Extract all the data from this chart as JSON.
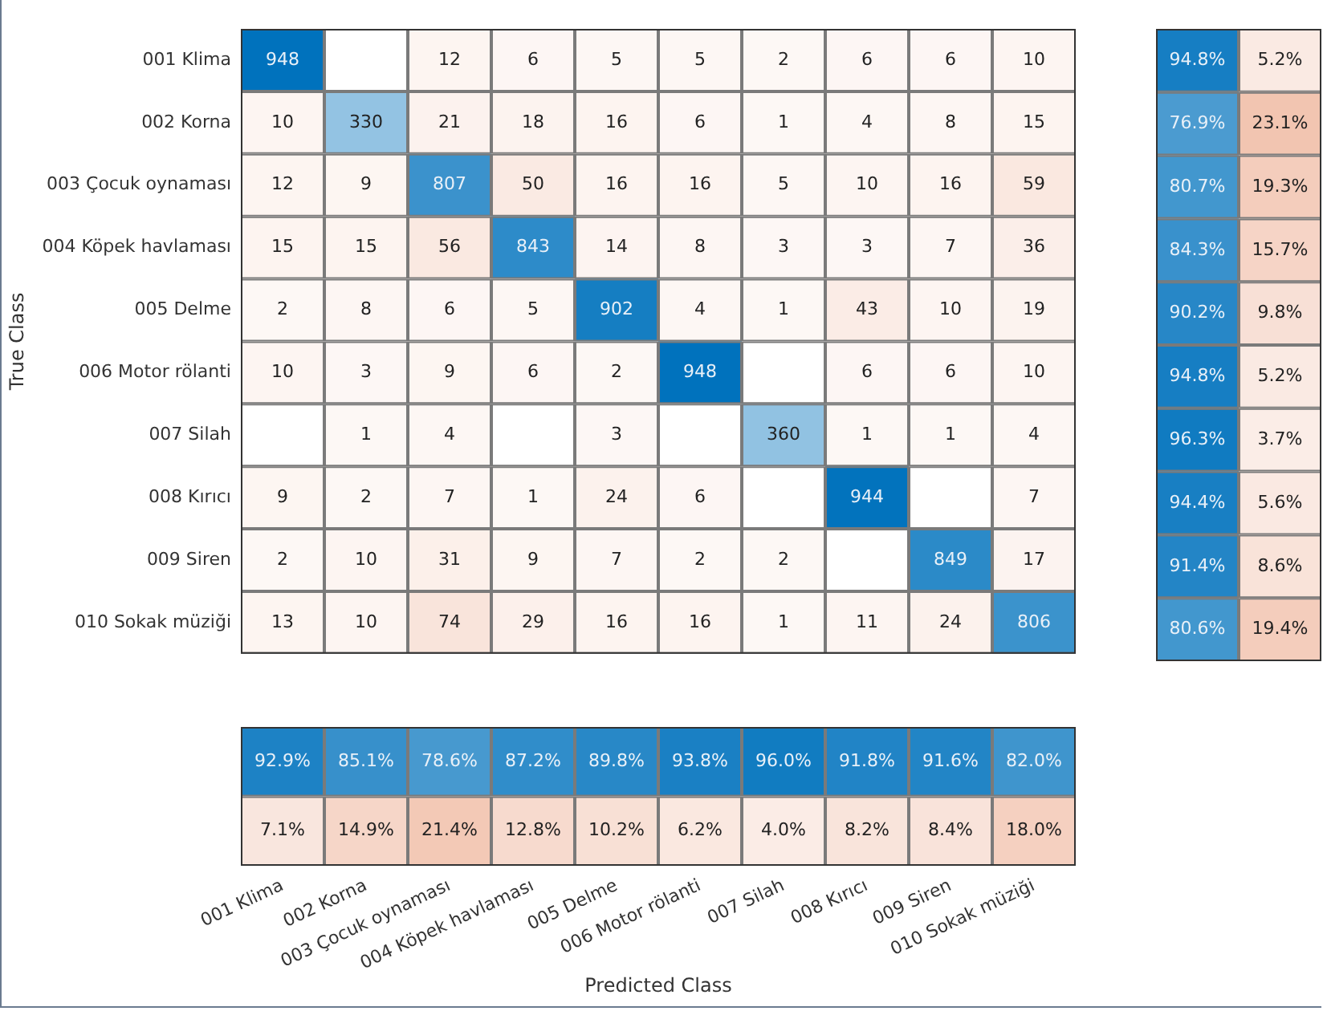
{
  "chart_data": [
    {
      "type": "heatmap",
      "ylabel": "True Class",
      "tick_labels": "y",
      "data_labels": true,
      "categories": [
        null,
        null,
        null,
        null,
        null,
        null,
        null,
        null,
        null,
        null
      ],
      "y_categories": [
        "001 Klima",
        "002 Korna",
        "003 Çocuk oynaması",
        "004 Köpek havlaması",
        "005 Delme",
        "006 Motor rölanti",
        "007 Silah",
        "008 Kırıcı",
        "009 Siren",
        "010 Sokak müziği"
      ],
      "cells": [
        [
          948,
          null,
          12,
          6,
          5,
          5,
          2,
          6,
          6,
          10
        ],
        [
          10,
          330,
          21,
          18,
          16,
          6,
          1,
          4,
          8,
          15
        ],
        [
          12,
          9,
          807,
          50,
          16,
          16,
          5,
          10,
          16,
          59
        ],
        [
          15,
          15,
          56,
          843,
          14,
          8,
          3,
          3,
          7,
          36
        ],
        [
          2,
          8,
          6,
          5,
          902,
          4,
          1,
          43,
          10,
          19
        ],
        [
          10,
          3,
          9,
          6,
          2,
          948,
          null,
          6,
          6,
          10
        ],
        [
          null,
          1,
          4,
          null,
          3,
          null,
          360,
          1,
          1,
          4
        ],
        [
          9,
          2,
          7,
          1,
          24,
          6,
          null,
          944,
          null,
          7
        ],
        [
          2,
          10,
          31,
          9,
          7,
          2,
          2,
          null,
          849,
          17
        ],
        [
          13,
          10,
          74,
          29,
          16,
          16,
          1,
          11,
          24,
          806
        ]
      ]
    },
    {
      "type": "heatmap",
      "tick_labels": false,
      "categories": [
        null,
        null
      ],
      "y_categories": [
        null,
        null,
        null,
        null,
        null,
        null,
        null,
        null,
        null,
        null
      ],
      "cells": [
        [
          94.8,
          5.2
        ],
        [
          76.9,
          23.1
        ],
        [
          80.7,
          19.3
        ],
        [
          84.3,
          15.7
        ],
        [
          90.2,
          9.8
        ],
        [
          94.8,
          5.2
        ],
        [
          96.3,
          3.7
        ],
        [
          94.4,
          5.6
        ],
        [
          91.4,
          8.6
        ],
        [
          80.6,
          19.4
        ]
      ],
      "cell_labels": [
        [
          "94.8%",
          "5.2%"
        ],
        [
          "76.9%",
          "23.1%"
        ],
        [
          "80.7%",
          "19.3%"
        ],
        [
          "84.3%",
          "15.7%"
        ],
        [
          "90.2%",
          "9.8%"
        ],
        [
          "94.8%",
          "5.2%"
        ],
        [
          "96.3%",
          "3.7%"
        ],
        [
          "94.4%",
          "5.6%"
        ],
        [
          "91.4%",
          "8.6%"
        ],
        [
          "80.6%",
          "19.4%"
        ]
      ]
    },
    {
      "type": "heatmap",
      "xlabel": "Predicted Class",
      "tick_labels": "x",
      "categories": [
        "001 Klima",
        "002 Korna",
        "003 Çocuk oynaması",
        "004 Köpek havlaması",
        "005 Delme",
        "006 Motor rölanti",
        "007 Silah",
        "008 Kırıcı",
        "009 Siren",
        "010 Sokak müziği"
      ],
      "y_categories": [
        null,
        null
      ],
      "cells": [
        [
          92.9,
          85.1,
          78.6,
          87.2,
          89.8,
          93.8,
          96.0,
          91.8,
          91.6,
          82.0
        ],
        [
          7.1,
          14.9,
          21.4,
          12.8,
          10.2,
          6.2,
          4.0,
          8.2,
          8.4,
          18.0
        ]
      ],
      "cell_labels": [
        [
          "92.9%",
          "85.1%",
          "78.6%",
          "87.2%",
          "89.8%",
          "93.8%",
          "96.0%",
          "91.8%",
          "91.6%",
          "82.0%"
        ],
        [
          "7.1%",
          "14.9%",
          "21.4%",
          "12.8%",
          "10.2%",
          "6.2%",
          "4.0%",
          "8.2%",
          "8.4%",
          "18.0%"
        ]
      ]
    }
  ]
}
